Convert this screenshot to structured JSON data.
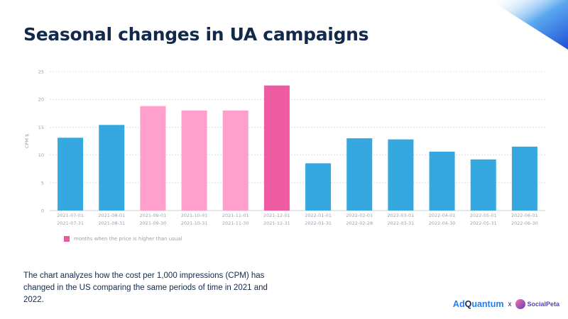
{
  "title": "Seasonal changes in UA campaigns",
  "legend_label": "months when the price is higher than usual",
  "description": "The chart analyzes how the cost per 1,000 impressions (CPM) has changed in the US comparing the same periods of time in 2021 and 2022.",
  "brand": {
    "adquantum_ad": "Ad",
    "adquantum_q": "Q",
    "adquantum_rest": "uantum",
    "separator": "x",
    "socialpeta": "SocialPeta"
  },
  "colors": {
    "normal": "#35a8e0",
    "elevated": "#ff9fcb",
    "peak": "#ef5ba1",
    "legend": "#e85a9f",
    "title": "#13294b"
  },
  "chart_data": {
    "type": "bar",
    "ylabel": "CPM $",
    "ylim": [
      0,
      25
    ],
    "yticks": [
      0,
      5,
      10,
      15,
      20,
      25
    ],
    "grid": true,
    "categories": [
      [
        "2021-07-01",
        "2021-07-31"
      ],
      [
        "2021-08-01",
        "2021-08-31"
      ],
      [
        "2021-09-01",
        "2021-09-30"
      ],
      [
        "2021-10-01",
        "2021-10-31"
      ],
      [
        "2021-11-01",
        "2021-11-30"
      ],
      [
        "2021-12-01",
        "2021-12-31"
      ],
      [
        "2022-01-01",
        "2022-01-31"
      ],
      [
        "2022-02-01",
        "2022-02-28"
      ],
      [
        "2022-03-01",
        "2022-03-31"
      ],
      [
        "2022-04-01",
        "2022-04-30"
      ],
      [
        "2022-05-01",
        "2022-05-31"
      ],
      [
        "2022-06-01",
        "2022-06-30"
      ]
    ],
    "values": [
      13.1,
      15.4,
      18.8,
      18.0,
      18.0,
      22.5,
      8.5,
      13.0,
      12.8,
      10.6,
      9.2,
      11.5
    ],
    "highlight": [
      "normal",
      "normal",
      "elevated",
      "elevated",
      "elevated",
      "peak",
      "normal",
      "normal",
      "normal",
      "normal",
      "normal",
      "normal"
    ]
  }
}
